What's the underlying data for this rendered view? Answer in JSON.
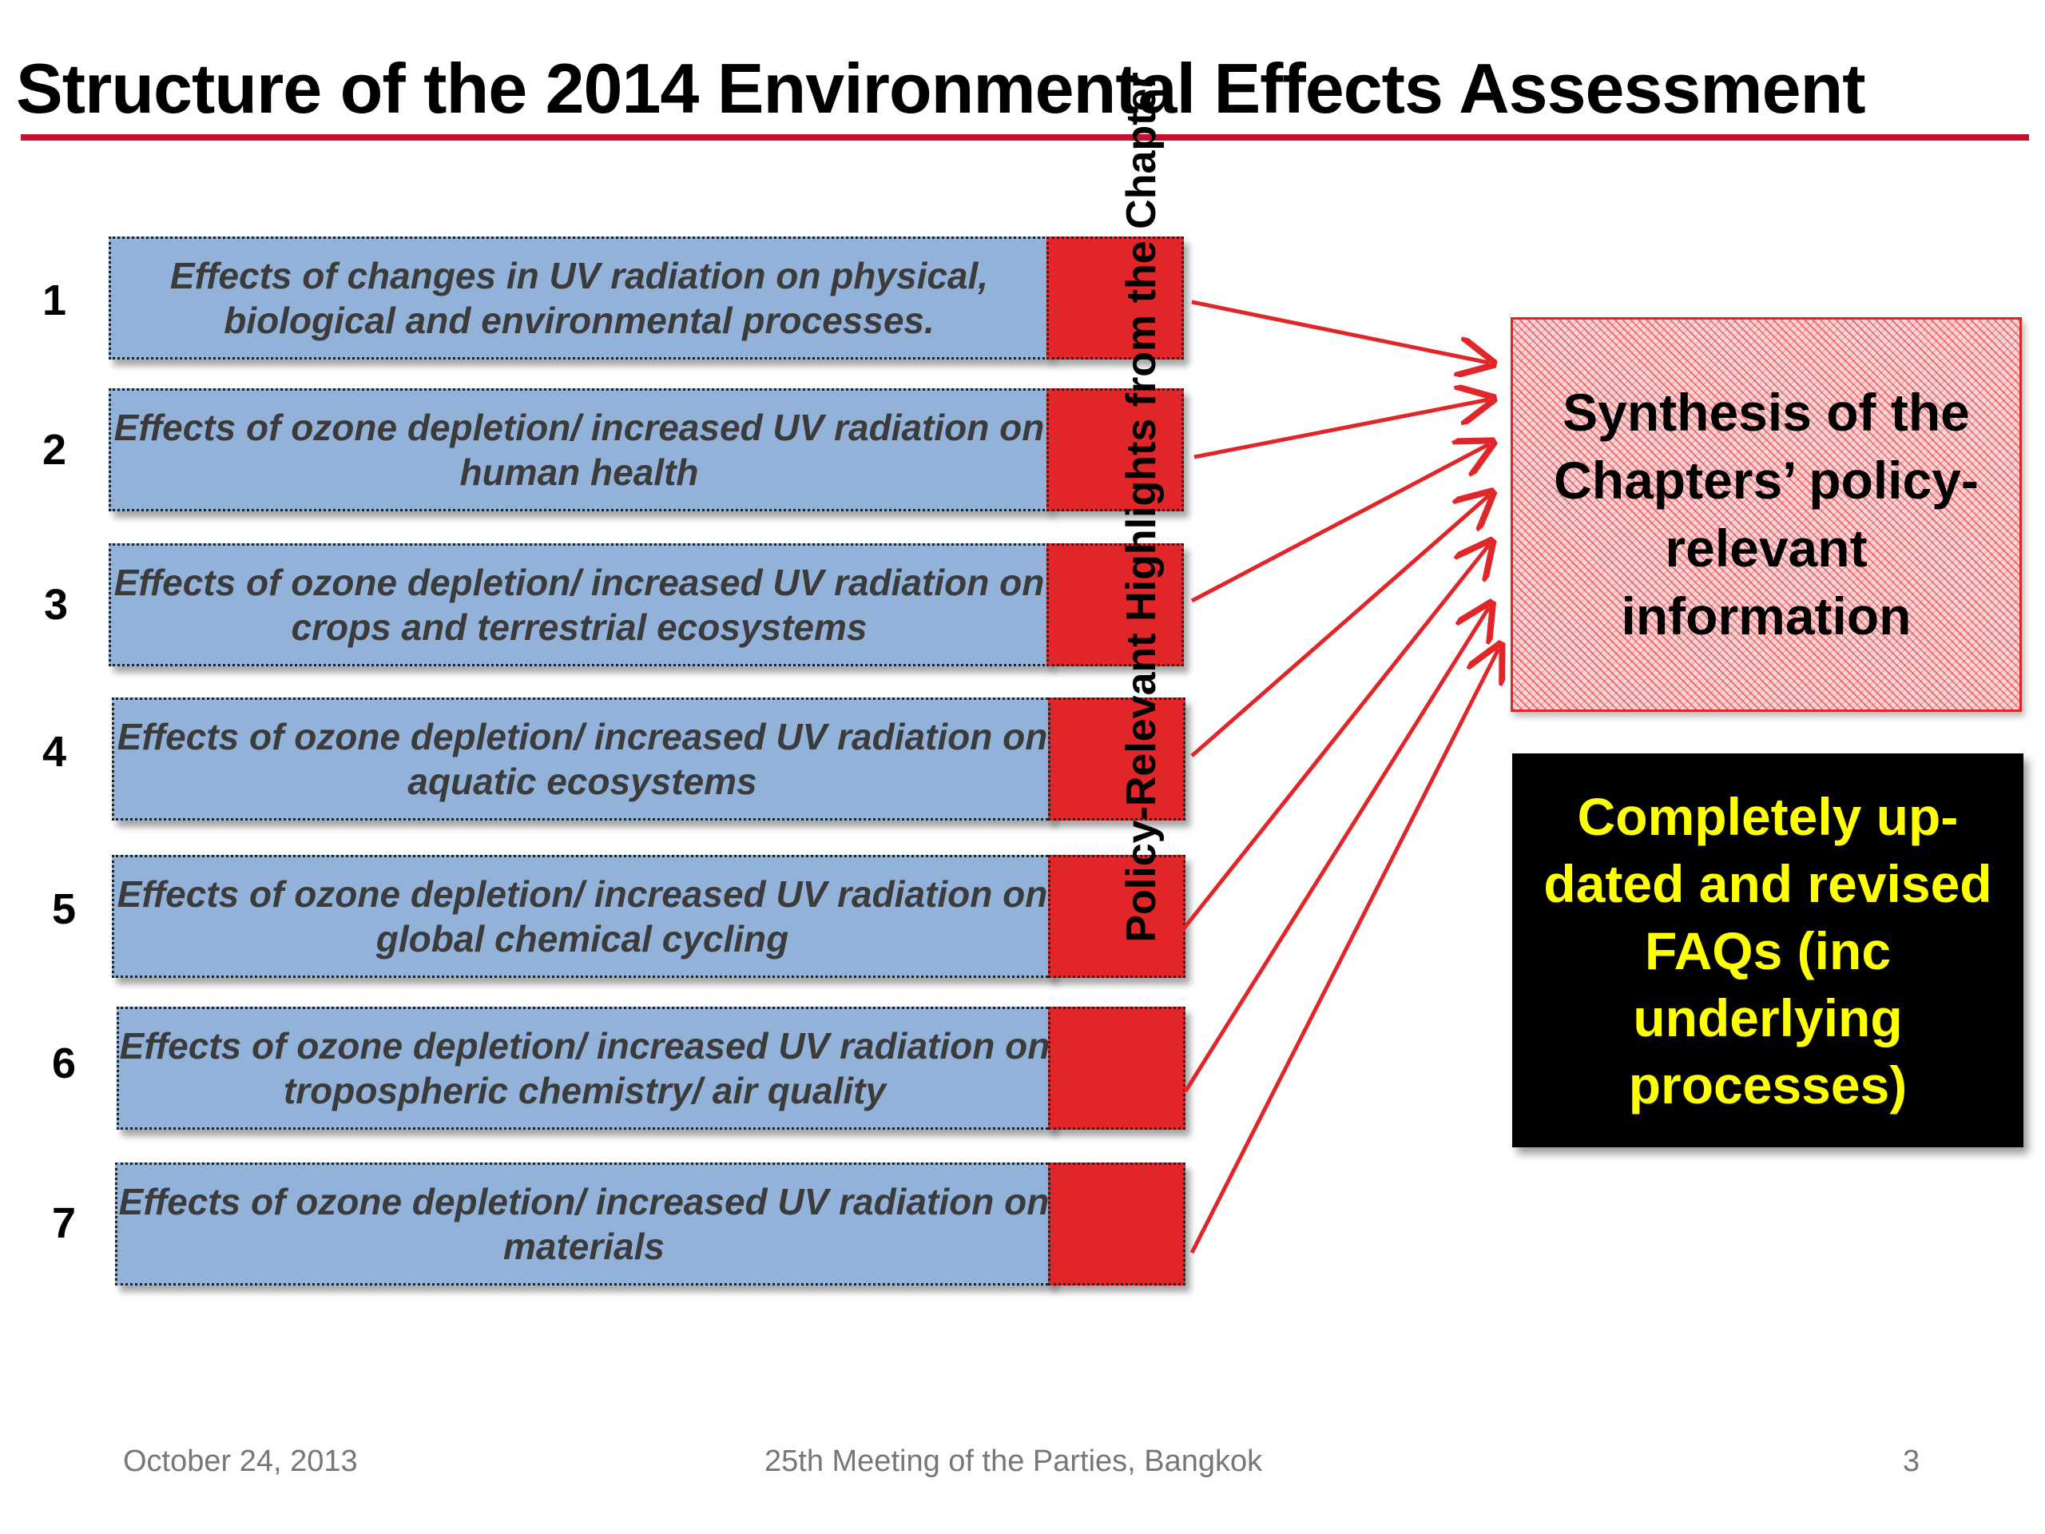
{
  "title": "Structure of the 2014 Environmental Effects  Assessment",
  "chapters": [
    {
      "number": "1",
      "text": "Effects of changes in UV radiation on physical, biological and environmental processes."
    },
    {
      "number": "2",
      "text": "Effects of ozone depletion/ increased UV radiation on human health"
    },
    {
      "number": "3",
      "text": "Effects of ozone depletion/ increased UV radiation on crops and terrestrial ecosystems"
    },
    {
      "number": "4",
      "text": "Effects of ozone depletion/ increased UV radiation on aquatic ecosystems"
    },
    {
      "number": "5",
      "text": "Effects of ozone depletion/ increased UV radiation on global chemical cycling"
    },
    {
      "number": "6",
      "text": "Effects of ozone depletion/ increased UV radiation on tropospheric chemistry/ air quality"
    },
    {
      "number": "7",
      "text": "Effects of ozone depletion/ increased UV radiation on materials"
    }
  ],
  "highlights_label": "Policy-Relevant Highlights from the Chapter",
  "synthesis_box": "Synthesis of the Chapters’ policy-relevant information",
  "faq_box": "Completely up-dated and revised FAQs (inc underlying processes)",
  "footer": {
    "date": "October 24, 2013",
    "meeting": "25th Meeting of the Parties, Bangkok",
    "page": "3"
  },
  "colors": {
    "chapter_fill": "#93b2da",
    "highlight_fill": "#e1262a",
    "title_rule": "#c8102e",
    "arrow": "#e1262a",
    "faq_text": "#ffff00",
    "faq_fill": "#000000"
  }
}
